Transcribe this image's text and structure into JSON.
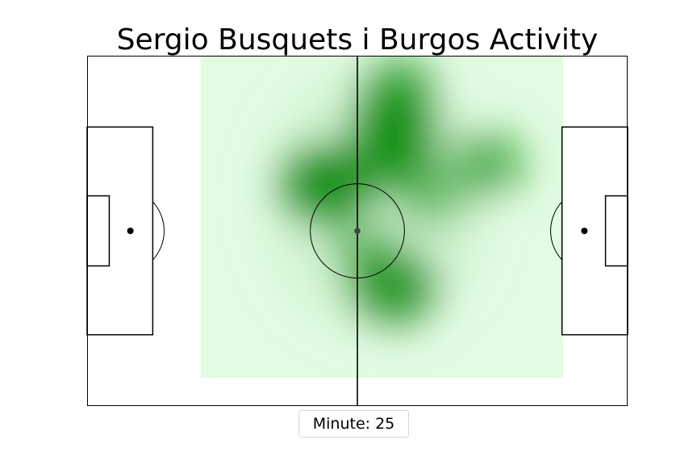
{
  "chart_data": {
    "type": "heatmap",
    "title": "Sergio Busquets i Burgos Activity",
    "xlabel": "",
    "ylabel": "",
    "pitch": {
      "length": 105,
      "width": 68
    },
    "xlim": [
      0,
      105
    ],
    "ylim": [
      0,
      68
    ],
    "grid": false,
    "colormap": "white-to-green",
    "colors": {
      "heat_low": "#e2fce2",
      "heat_high": "#0a8c0a",
      "lines": "#000000"
    },
    "activity_area": {
      "x": [
        22,
        92.5
      ],
      "y": [
        5.5,
        68
      ]
    },
    "density_peaks": [
      {
        "x": 46.5,
        "y": 43.0,
        "weight": 1.0
      },
      {
        "x": 59.5,
        "y": 54.5,
        "weight": 0.85
      },
      {
        "x": 60.0,
        "y": 48.0,
        "weight": 0.75
      },
      {
        "x": 60.5,
        "y": 61.5,
        "weight": 0.55
      },
      {
        "x": 59.5,
        "y": 23.0,
        "weight": 0.85
      },
      {
        "x": 77.5,
        "y": 47.0,
        "weight": 0.55
      },
      {
        "x": 54.0,
        "y": 30.0,
        "weight": 0.35
      },
      {
        "x": 67.0,
        "y": 40.0,
        "weight": 0.3
      }
    ]
  },
  "slider": {
    "label": "Minute:",
    "value": "25"
  }
}
